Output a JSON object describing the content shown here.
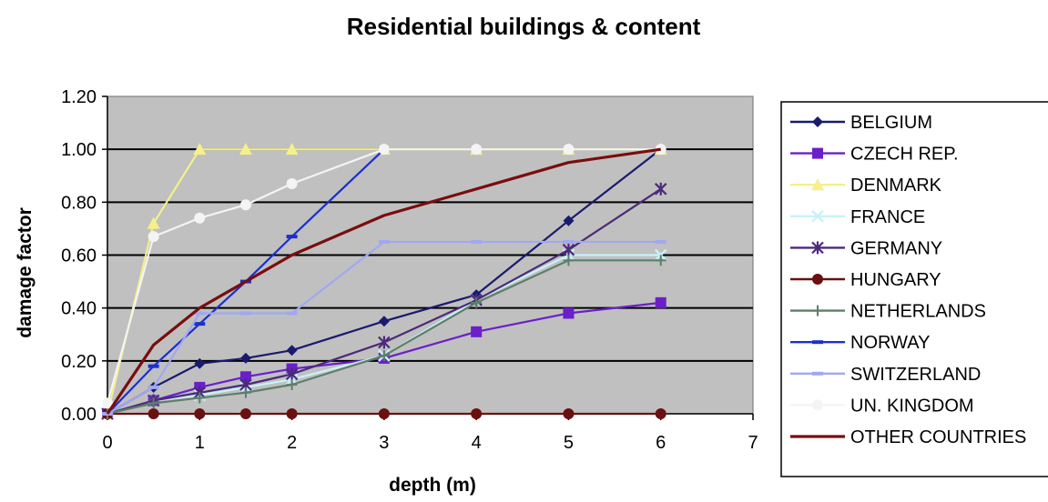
{
  "chart_data": {
    "type": "line",
    "title": "Residential buildings & content",
    "xlabel": "depth (m)",
    "ylabel": "damage factor",
    "xlim": [
      0,
      7
    ],
    "ylim": [
      0,
      1.2
    ],
    "x_ticks": [
      "0",
      "1",
      "2",
      "3",
      "4",
      "5",
      "6",
      "7"
    ],
    "y_ticks": [
      "0.00",
      "0.20",
      "0.40",
      "0.60",
      "0.80",
      "1.00",
      "1.20"
    ],
    "grid": "horizontal",
    "plot_background": "#c0c0c0",
    "legend_position": "right",
    "series": [
      {
        "name": "BELGIUM",
        "color": "#1a1a6e",
        "marker": "diamond",
        "x": [
          0,
          0.5,
          1,
          1.5,
          2,
          3,
          4,
          5,
          6
        ],
        "y": [
          0,
          0.1,
          0.19,
          0.21,
          0.24,
          0.35,
          0.45,
          0.73,
          1.0
        ]
      },
      {
        "name": "CZECH REP.",
        "color": "#6a1fc8",
        "marker": "square",
        "x": [
          0,
          0.5,
          1,
          1.5,
          2,
          3,
          4,
          5,
          6
        ],
        "y": [
          0,
          0.05,
          0.1,
          0.14,
          0.17,
          0.21,
          0.31,
          0.38,
          0.42
        ]
      },
      {
        "name": "DENMARK",
        "color": "#f5f08a",
        "marker": "triangle",
        "x": [
          0,
          0.5,
          1,
          1.5,
          2,
          3,
          4,
          5,
          6
        ],
        "y": [
          0,
          0.72,
          1.0,
          1.0,
          1.0,
          1.0,
          1.0,
          1.0,
          1.0
        ]
      },
      {
        "name": "FRANCE",
        "color": "#c8f2f8",
        "marker": "x",
        "x": [
          0,
          0.5,
          1,
          1.5,
          2,
          3,
          4,
          5,
          6
        ],
        "y": [
          0,
          0.05,
          0.07,
          0.1,
          0.13,
          0.22,
          0.43,
          0.6,
          0.6
        ]
      },
      {
        "name": "GERMANY",
        "color": "#4b2a7a",
        "marker": "star",
        "x": [
          0,
          0.5,
          1,
          1.5,
          2,
          3,
          4,
          5,
          6
        ],
        "y": [
          0,
          0.05,
          0.08,
          0.11,
          0.15,
          0.27,
          0.43,
          0.62,
          0.85
        ]
      },
      {
        "name": "HUNGARY",
        "color": "#6b1010",
        "marker": "circle",
        "x": [
          0,
          0.5,
          1,
          1.5,
          2,
          3,
          4,
          5,
          6
        ],
        "y": [
          0,
          0,
          0,
          0,
          0,
          0,
          0,
          0,
          0
        ]
      },
      {
        "name": "NETHERLANDS",
        "color": "#5e7f6a",
        "marker": "plus",
        "x": [
          0,
          0.5,
          1,
          1.5,
          2,
          3,
          4,
          5,
          6
        ],
        "y": [
          0,
          0.04,
          0.06,
          0.08,
          0.11,
          0.22,
          0.42,
          0.58,
          0.58
        ]
      },
      {
        "name": "NORWAY",
        "color": "#1c2fd0",
        "marker": "dash",
        "x": [
          0,
          0.5,
          1,
          1.5,
          2,
          3
        ],
        "y": [
          0,
          0.18,
          0.34,
          0.5,
          0.67,
          1.0
        ]
      },
      {
        "name": "SWITZERLAND",
        "color": "#a0a8f2",
        "marker": "dash",
        "x": [
          0,
          0.5,
          1,
          1.5,
          2,
          3,
          4,
          5,
          6
        ],
        "y": [
          0,
          0.1,
          0.38,
          0.38,
          0.38,
          0.65,
          0.65,
          0.65,
          0.65
        ]
      },
      {
        "name": "UN. KINGDOM",
        "color": "#f4f4f4",
        "marker": "circle",
        "x": [
          0,
          0.5,
          1,
          1.5,
          2,
          3,
          4,
          5,
          6
        ],
        "y": [
          0.04,
          0.67,
          0.74,
          0.79,
          0.87,
          1.0,
          1.0,
          1.0,
          1.0
        ]
      },
      {
        "name": "OTHER COUNTRIES",
        "color": "#7a0d0d",
        "marker": "none",
        "x": [
          0,
          0.5,
          1,
          2,
          3,
          4,
          5,
          6
        ],
        "y": [
          0,
          0.26,
          0.4,
          0.6,
          0.75,
          0.85,
          0.95,
          1.0
        ]
      }
    ]
  }
}
